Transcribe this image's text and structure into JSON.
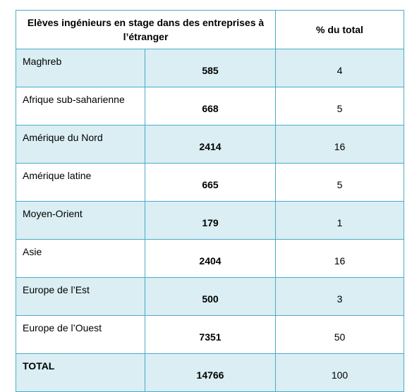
{
  "table": {
    "header": [
      "Elèves ingénieurs en stage dans des entreprises à l’étranger",
      "% du total"
    ],
    "rows": [
      [
        "Maghreb",
        585,
        4
      ],
      [
        "Afrique sub-saharienne",
        668,
        5
      ],
      [
        "Amérique du Nord",
        2414,
        16
      ],
      [
        "Amérique latine",
        665,
        5
      ],
      [
        "Moyen-Orient",
        179,
        1
      ],
      [
        "Asie",
        2404,
        16
      ],
      [
        "Europe de l’Est",
        500,
        3
      ],
      [
        "Europe de l’Ouest",
        7351,
        50
      ],
      [
        "TOTAL",
        14766,
        100
      ]
    ]
  }
}
